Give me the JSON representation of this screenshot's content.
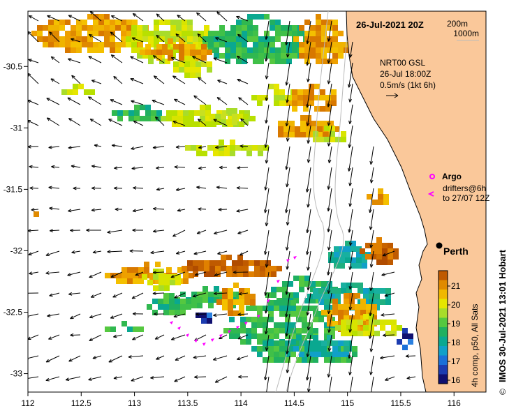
{
  "header": {
    "datetime": "26-Jul-2021 20Z",
    "contour_labels": [
      "200m",
      "1000m"
    ]
  },
  "current_legend": {
    "lines": [
      "NRT00 GSL",
      "26-Jul 18:00Z",
      "0.5m/s (1kt 6h)"
    ]
  },
  "markers": {
    "argo_label": "Argo",
    "drifters_label_line1": "drifters@6h",
    "drifters_label_line2": "to 27/07 12Z"
  },
  "city": {
    "name": "Perth",
    "lon": 115.86,
    "lat": -31.95
  },
  "colorbar": {
    "ticks": [
      "21",
      "20",
      "19",
      "18",
      "17",
      "16"
    ],
    "label": "4h comp, p50, All Sats",
    "colors": [
      "#bf5a00",
      "#e08a00",
      "#f0b800",
      "#e6e600",
      "#a8dc2a",
      "#55c840",
      "#20b060",
      "#0aa890",
      "#10a0c8",
      "#1a70d8",
      "#1c3cb0",
      "#101070"
    ]
  },
  "credit": "IMOS 30-Jul-2021 13:01 Hobart",
  "copyright_symbol": "©",
  "axes": {
    "x_ticks": [
      "112",
      "112.5",
      "113",
      "113.5",
      "114",
      "114.5",
      "115",
      "115.5",
      "116"
    ],
    "y_ticks": [
      "-30.5",
      "-31",
      "-31.5",
      "-32",
      "-32.5",
      "-33"
    ],
    "xlim": [
      112,
      116.3
    ],
    "ylim": [
      -33.15,
      -30.05
    ]
  },
  "colors": {
    "land": "#fac89a",
    "coast": "#000000",
    "contour": "#bbbbbb",
    "drifter": "#ff00ff"
  }
}
